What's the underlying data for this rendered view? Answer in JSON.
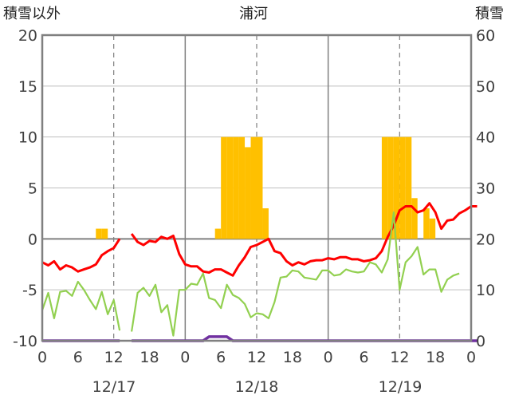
{
  "chart_data": {
    "type": "combo",
    "title": "浦河",
    "left_axis_label": "積雪以外",
    "right_axis_label": "積雪",
    "left_ylim": [
      -10,
      20
    ],
    "right_ylim": [
      0,
      60
    ],
    "left_ticks": [
      "20",
      "15",
      "10",
      "5",
      "0",
      "-5",
      "-10"
    ],
    "right_ticks": [
      "60",
      "50",
      "40",
      "30",
      "20",
      "10",
      "0"
    ],
    "x_range_hours": [
      0,
      72
    ],
    "hour_ticks": [
      "0",
      "6",
      "12",
      "18",
      "0",
      "6",
      "12",
      "18",
      "0",
      "6",
      "12",
      "18",
      "0"
    ],
    "date_labels": [
      "12/17",
      "12/18",
      "12/19"
    ],
    "grid": true,
    "colors": {
      "snowfall_bars": "#FFC000",
      "temperature": "#FF0000",
      "humidity_like_line": "#92D050",
      "snow_depth": "#7030A0",
      "axis": "#808080",
      "zero_line": "#808080",
      "grid_dashed": "#7f7f7f"
    },
    "bars": {
      "name": "",
      "axis": "left",
      "points": [
        {
          "h": 9.5,
          "v": 1
        },
        {
          "h": 10.5,
          "v": 1
        },
        {
          "h": 29.5,
          "v": 1
        },
        {
          "h": 30.5,
          "v": 10
        },
        {
          "h": 31.5,
          "v": 10
        },
        {
          "h": 32.5,
          "v": 10
        },
        {
          "h": 33.5,
          "v": 10
        },
        {
          "h": 34.5,
          "v": 9
        },
        {
          "h": 35.5,
          "v": 10
        },
        {
          "h": 36.5,
          "v": 10
        },
        {
          "h": 37.5,
          "v": 3
        },
        {
          "h": 57.5,
          "v": 10
        },
        {
          "h": 58.5,
          "v": 10
        },
        {
          "h": 59.5,
          "v": 10
        },
        {
          "h": 60.5,
          "v": 10
        },
        {
          "h": 61.5,
          "v": 10
        },
        {
          "h": 62.5,
          "v": 4
        },
        {
          "h": 64.5,
          "v": 3
        },
        {
          "h": 65.5,
          "v": 2
        }
      ]
    },
    "series": [
      {
        "name": "",
        "axis": "left",
        "segments": [
          [
            [
              0,
              -2.3
            ],
            [
              1,
              -2.6
            ],
            [
              2,
              -2.2
            ],
            [
              3,
              -3.0
            ],
            [
              4,
              -2.6
            ],
            [
              5,
              -2.8
            ],
            [
              6,
              -3.2
            ],
            [
              7,
              -3.0
            ],
            [
              8,
              -2.8
            ],
            [
              9,
              -2.5
            ],
            [
              10,
              -1.6
            ],
            [
              11,
              -1.2
            ],
            [
              12,
              -0.9
            ],
            [
              13,
              0
            ]
          ],
          [
            [
              15,
              0.5
            ],
            [
              16,
              -0.3
            ],
            [
              17,
              -0.6
            ],
            [
              18,
              -0.2
            ],
            [
              19,
              -0.3
            ],
            [
              20,
              0.2
            ],
            [
              21,
              0
            ],
            [
              22,
              0.3
            ],
            [
              23,
              -1.5
            ],
            [
              24,
              -2.5
            ],
            [
              25,
              -2.7
            ],
            [
              26,
              -2.7
            ],
            [
              27,
              -3.2
            ],
            [
              28,
              -3.3
            ],
            [
              29,
              -3.0
            ],
            [
              30,
              -3.0
            ],
            [
              31,
              -3.3
            ],
            [
              32,
              -3.6
            ],
            [
              33,
              -2.6
            ],
            [
              34,
              -1.8
            ],
            [
              35,
              -0.8
            ],
            [
              36,
              -0.6
            ],
            [
              37,
              -0.3
            ],
            [
              38,
              0
            ],
            [
              39,
              -1.2
            ],
            [
              40,
              -1.4
            ],
            [
              41,
              -2.2
            ],
            [
              42,
              -2.6
            ],
            [
              43,
              -2.3
            ],
            [
              44,
              -2.5
            ],
            [
              45,
              -2.2
            ],
            [
              46,
              -2.1
            ],
            [
              47,
              -2.1
            ],
            [
              48,
              -1.9
            ],
            [
              49,
              -2.0
            ],
            [
              50,
              -1.8
            ],
            [
              51,
              -1.8
            ],
            [
              52,
              -2.0
            ],
            [
              53,
              -2.0
            ],
            [
              54,
              -2.2
            ],
            [
              55,
              -2.1
            ],
            [
              56,
              -1.9
            ],
            [
              57,
              -1.2
            ],
            [
              58,
              0.2
            ],
            [
              59,
              1.3
            ],
            [
              60,
              2.8
            ],
            [
              61,
              3.2
            ],
            [
              62,
              3.2
            ],
            [
              63,
              2.6
            ],
            [
              64,
              2.8
            ],
            [
              65,
              3.5
            ],
            [
              66,
              2.6
            ],
            [
              67,
              1.0
            ],
            [
              68,
              1.8
            ],
            [
              69,
              1.9
            ],
            [
              70,
              2.5
            ],
            [
              71,
              2.8
            ],
            [
              72,
              3.2
            ],
            [
              73,
              3.2
            ]
          ]
        ]
      },
      {
        "name": "",
        "axis": "left",
        "segments": [
          [
            [
              0,
              -7.0
            ],
            [
              1,
              -5.3
            ],
            [
              2,
              -7.8
            ],
            [
              3,
              -5.2
            ],
            [
              4,
              -5.1
            ],
            [
              5,
              -5.6
            ],
            [
              6,
              -4.2
            ],
            [
              7,
              -5.0
            ],
            [
              8,
              -6.0
            ],
            [
              9,
              -6.9
            ],
            [
              10,
              -5.2
            ],
            [
              11,
              -7.4
            ],
            [
              12,
              -6.0
            ],
            [
              13,
              -9.0
            ]
          ],
          [
            [
              15,
              -9.1
            ],
            [
              16,
              -5.3
            ],
            [
              17,
              -4.8
            ],
            [
              18,
              -5.6
            ],
            [
              19,
              -4.5
            ],
            [
              20,
              -7.2
            ],
            [
              21,
              -6.5
            ],
            [
              22,
              -9.5
            ],
            [
              23,
              -5.0
            ],
            [
              24,
              -5.0
            ],
            [
              25,
              -4.4
            ],
            [
              26,
              -4.5
            ],
            [
              27,
              -3.4
            ],
            [
              28,
              -5.8
            ],
            [
              29,
              -6.0
            ],
            [
              30,
              -6.8
            ],
            [
              31,
              -4.5
            ],
            [
              32,
              -5.5
            ],
            [
              33,
              -5.8
            ],
            [
              34,
              -6.4
            ],
            [
              35,
              -7.7
            ],
            [
              36,
              -7.3
            ],
            [
              37,
              -7.4
            ],
            [
              38,
              -7.8
            ],
            [
              39,
              -6.2
            ],
            [
              40,
              -3.8
            ],
            [
              41,
              -3.7
            ],
            [
              42,
              -3.1
            ],
            [
              43,
              -3.2
            ],
            [
              44,
              -3.8
            ],
            [
              45,
              -3.9
            ],
            [
              46,
              -4.0
            ],
            [
              47,
              -3.1
            ],
            [
              48,
              -3.1
            ],
            [
              49,
              -3.6
            ],
            [
              50,
              -3.5
            ],
            [
              51,
              -3.0
            ],
            [
              52,
              -3.2
            ],
            [
              53,
              -3.3
            ],
            [
              54,
              -3.2
            ],
            [
              55,
              -2.3
            ],
            [
              56,
              -2.5
            ],
            [
              57,
              -3.3
            ],
            [
              58,
              -2.0
            ],
            [
              59,
              2.6
            ],
            [
              60,
              -5.0
            ],
            [
              61,
              -2.3
            ],
            [
              62,
              -1.7
            ],
            [
              63,
              -0.8
            ],
            [
              64,
              -3.5
            ],
            [
              65,
              -3.0
            ],
            [
              66,
              -3.0
            ],
            [
              67,
              -5.2
            ],
            [
              68,
              -4.0
            ],
            [
              69,
              -3.6
            ],
            [
              70,
              -3.4
            ]
          ]
        ]
      },
      {
        "name": "",
        "axis": "right",
        "segments": [
          [
            [
              0,
              0
            ],
            [
              13,
              0
            ]
          ],
          [
            [
              15,
              0
            ],
            [
              24,
              0
            ],
            [
              25,
              0
            ],
            [
              26,
              0
            ],
            [
              27,
              0
            ],
            [
              28,
              0.8
            ],
            [
              31,
              0.8
            ],
            [
              32,
              0
            ],
            [
              73,
              0
            ]
          ]
        ]
      }
    ]
  }
}
